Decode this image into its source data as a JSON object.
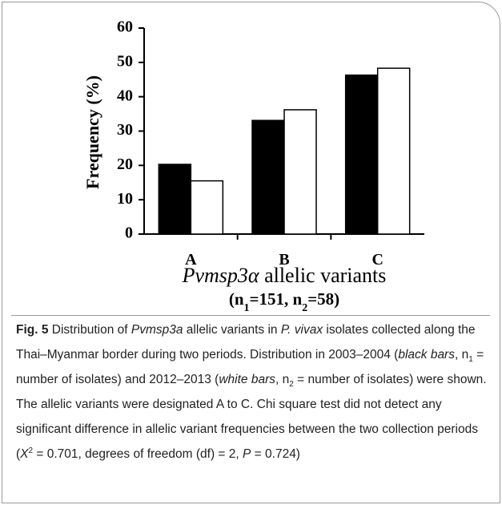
{
  "chart_data": {
    "type": "bar",
    "categories": [
      "A",
      "B",
      "C"
    ],
    "series": [
      {
        "color": "#000000",
        "values": [
          20.3,
          33.1,
          46.3
        ]
      },
      {
        "color": "#ffffff",
        "values": [
          15.5,
          36.2,
          48.3
        ]
      }
    ],
    "ylabel": "Frequency (%)",
    "xlabel": {
      "italic": "Pvmsp3α",
      "text": "allelic variants"
    },
    "sample_sizes": [
      "(n",
      "1",
      "=151, n",
      "2",
      "=58)"
    ],
    "ylim": [
      0,
      60
    ],
    "yticks": [
      0,
      10,
      20,
      30,
      40,
      50,
      60
    ]
  },
  "caption": [
    {
      "text": "Fig. 5",
      "style": "b"
    },
    {
      "text": "  Distribution of "
    },
    {
      "text": "Pvmsp3a",
      "style": "i"
    },
    {
      "text": " allelic variants in "
    },
    {
      "text": "P. vivax",
      "style": "i"
    },
    {
      "text": " isolates collected along the Thai–Myanmar border during two periods. Distribution in 2003–2004 ("
    },
    {
      "text": "black bars",
      "style": "i"
    },
    {
      "text": ", n"
    },
    {
      "text": "1",
      "style": "sub"
    },
    {
      "text": " = number of isolates) and 2012–2013 ("
    },
    {
      "text": "white bars",
      "style": "i"
    },
    {
      "text": ", n"
    },
    {
      "text": "2",
      "style": "sub"
    },
    {
      "text": " = number of isolates) were shown. The allelic variants were designated A to C. Chi square test did not detect any significant difference in allelic variant frequencies between the two collection periods ("
    },
    {
      "text": "X",
      "style": "i"
    },
    {
      "text": "2",
      "style": "sup"
    },
    {
      "text": " = 0.701, degrees of freedom (df) = 2, "
    },
    {
      "text": "P",
      "style": "i"
    },
    {
      "text": " = 0.724)"
    }
  ]
}
